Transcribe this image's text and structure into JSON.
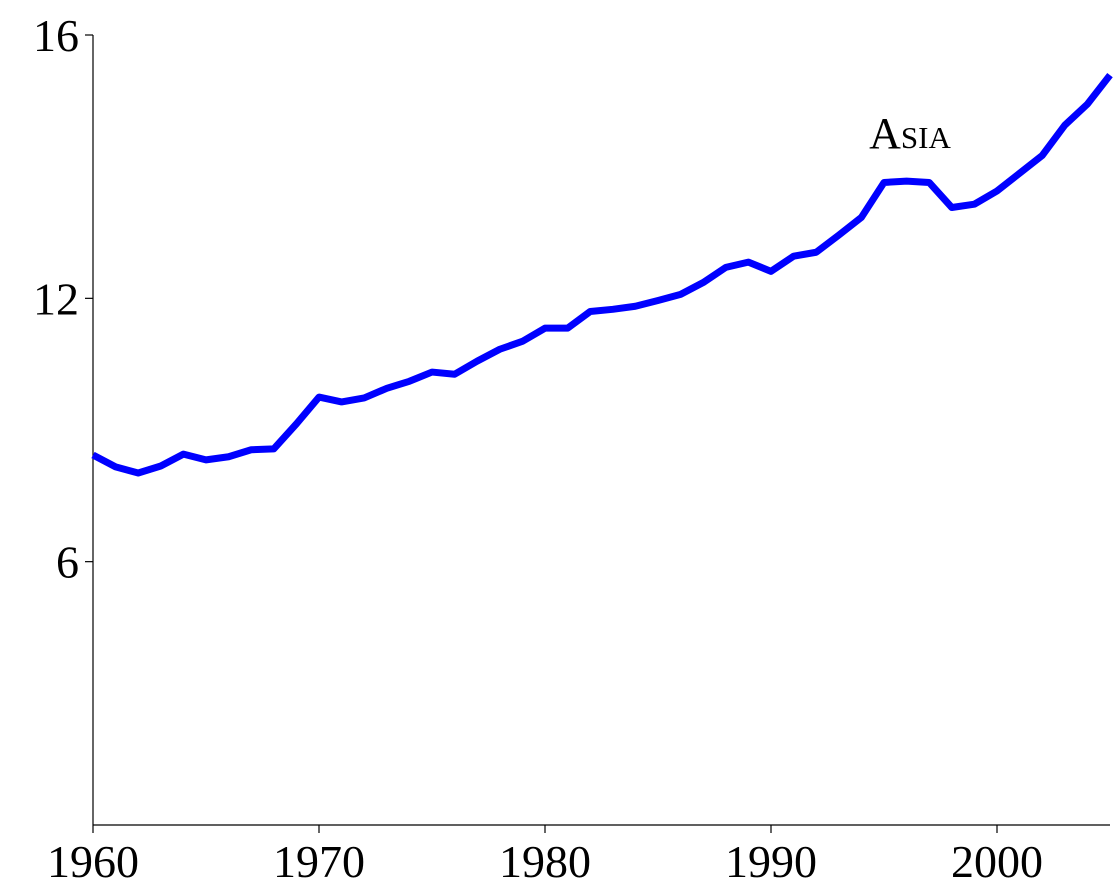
{
  "chart_data": {
    "type": "line",
    "x": [
      1960,
      1961,
      1962,
      1963,
      1964,
      1965,
      1966,
      1967,
      1968,
      1969,
      1970,
      1971,
      1972,
      1973,
      1974,
      1975,
      1976,
      1977,
      1978,
      1979,
      1980,
      1981,
      1982,
      1983,
      1984,
      1985,
      1986,
      1987,
      1988,
      1989,
      1990,
      1991,
      1992,
      1993,
      1994,
      1995,
      1996,
      1997,
      1998,
      1999,
      2000,
      2001,
      2002,
      2003,
      2004,
      2005
    ],
    "series": [
      {
        "name": "Asia",
        "color": "#0000ff",
        "values": [
          8.43,
          8.16,
          8.02,
          8.18,
          8.45,
          8.32,
          8.39,
          8.55,
          8.57,
          9.14,
          9.75,
          9.64,
          9.73,
          9.95,
          10.11,
          10.32,
          10.27,
          10.57,
          10.84,
          11.02,
          11.32,
          11.32,
          11.7,
          11.75,
          11.82,
          11.95,
          12.06,
          12.24,
          12.47,
          12.55,
          12.41,
          12.64,
          12.7,
          12.96,
          13.23,
          13.76,
          13.78,
          13.76,
          13.38,
          13.43,
          13.63,
          13.9,
          14.17,
          14.63,
          14.95,
          15.39
        ]
      }
    ],
    "xlim": [
      1960,
      2005
    ],
    "xticks": [
      1960,
      1970,
      1980,
      1990,
      2000
    ],
    "ylim": [
      0,
      16
    ],
    "yticks": [
      6,
      12,
      16
    ]
  }
}
